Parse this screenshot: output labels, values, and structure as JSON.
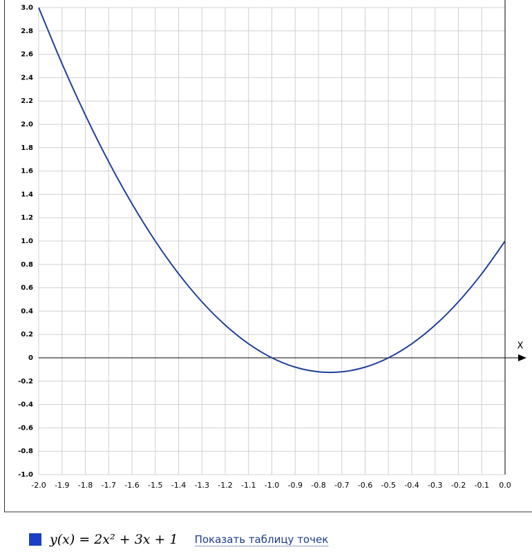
{
  "chart_data": {
    "type": "line",
    "x_label": "X",
    "x": [
      -2.0,
      -1.9,
      -1.8,
      -1.7,
      -1.6,
      -1.5,
      -1.4,
      -1.3,
      -1.2,
      -1.1,
      -1.0,
      -0.9,
      -0.8,
      -0.7,
      -0.6,
      -0.5,
      -0.4,
      -0.3,
      -0.2,
      -0.1,
      0.0
    ],
    "series": [
      {
        "name": "y(x) = 2x² + 3x + 1",
        "color": "#1f3f99",
        "values": [
          3,
          2.52,
          2.08,
          1.68,
          1.32,
          1,
          0.72,
          0.48,
          0.28,
          0.12,
          0,
          -0.08,
          -0.12,
          -0.12,
          -0.08,
          0,
          0.12,
          0.28,
          0.48,
          0.72,
          1
        ]
      }
    ],
    "legend_color": "#1a3fc4",
    "table_link": "Показать таблицу точек",
    "xlim": [
      -2.0,
      0.0
    ],
    "ylim": [
      -1.0,
      3.0
    ],
    "xticks": [
      {
        "value": -2.0,
        "label": "-2.0"
      },
      -1.9,
      -1.8,
      -1.7,
      -1.6,
      -1.5,
      -1.4,
      -1.3,
      -1.2,
      -1.1,
      {
        "value": -1.0,
        "label": "-1.0"
      },
      -0.9,
      -0.8,
      -0.7,
      -0.6,
      -0.5,
      -0.4,
      -0.3,
      -0.2,
      -0.1,
      {
        "value": 0.0,
        "label": "0.0"
      }
    ],
    "yticks": [
      {
        "value": 3.0,
        "label": "3.0"
      },
      2.8,
      2.6,
      2.4,
      2.2,
      {
        "value": 2.0,
        "label": "2.0"
      },
      1.8,
      1.6,
      1.4,
      1.2,
      {
        "value": 1.0,
        "label": "1.0"
      },
      0.8,
      0.6,
      0.4,
      0.2,
      0,
      -0.2,
      -0.4,
      -0.6,
      -0.8,
      {
        "value": -1.0,
        "label": "-1.0"
      }
    ],
    "grid": true
  }
}
